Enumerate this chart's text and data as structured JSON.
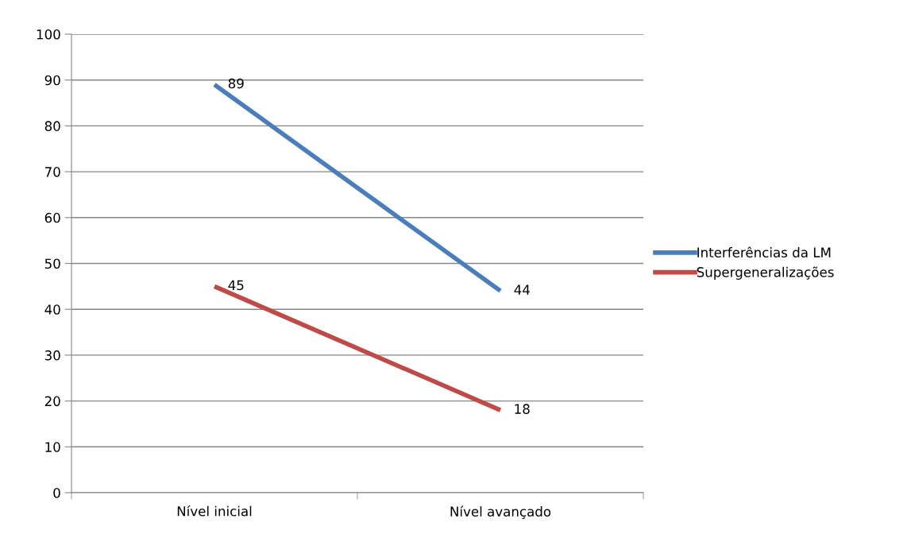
{
  "chart_data": {
    "type": "line",
    "categories": [
      "Nível inicial",
      "Nível avançado"
    ],
    "series": [
      {
        "name": "Interferências da LM",
        "color": "#4a7ebb",
        "values": [
          89,
          44
        ]
      },
      {
        "name": "Supergeneralizações",
        "color": "#be4b48",
        "values": [
          45,
          18
        ]
      }
    ],
    "ylim": [
      0,
      100
    ],
    "yticks": [
      0,
      10,
      20,
      30,
      40,
      50,
      60,
      70,
      80,
      90,
      100
    ],
    "grid": "y",
    "legend": "right",
    "data_labels": true,
    "marker": "none",
    "line_style": "solid"
  }
}
